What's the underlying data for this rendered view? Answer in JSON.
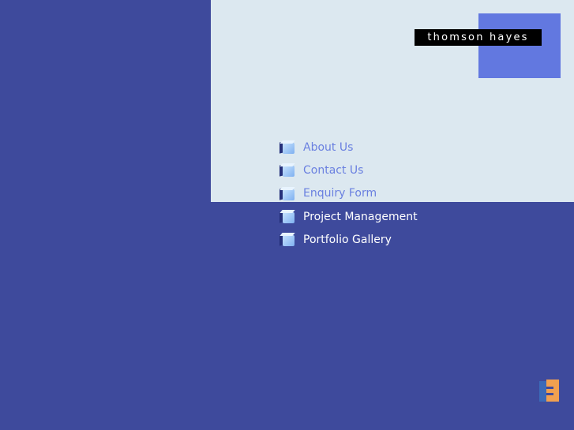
{
  "brand": {
    "name": "thomson hayes",
    "accent": "#6278e0"
  },
  "nav": {
    "items": [
      {
        "label": "About Us",
        "icon": "cube-icon"
      },
      {
        "label": "Contact Us",
        "icon": "cube-icon"
      },
      {
        "label": "Enquiry Form",
        "icon": "cube-icon"
      },
      {
        "label": "Project Management",
        "icon": "cube-icon"
      },
      {
        "label": "Portfolio Gallery",
        "icon": "cube-icon"
      }
    ]
  },
  "colors": {
    "background": "#3e4a9c",
    "panel": "#dce8f0",
    "link_light": "#6a80e0",
    "link_dark": "#ffffff"
  }
}
